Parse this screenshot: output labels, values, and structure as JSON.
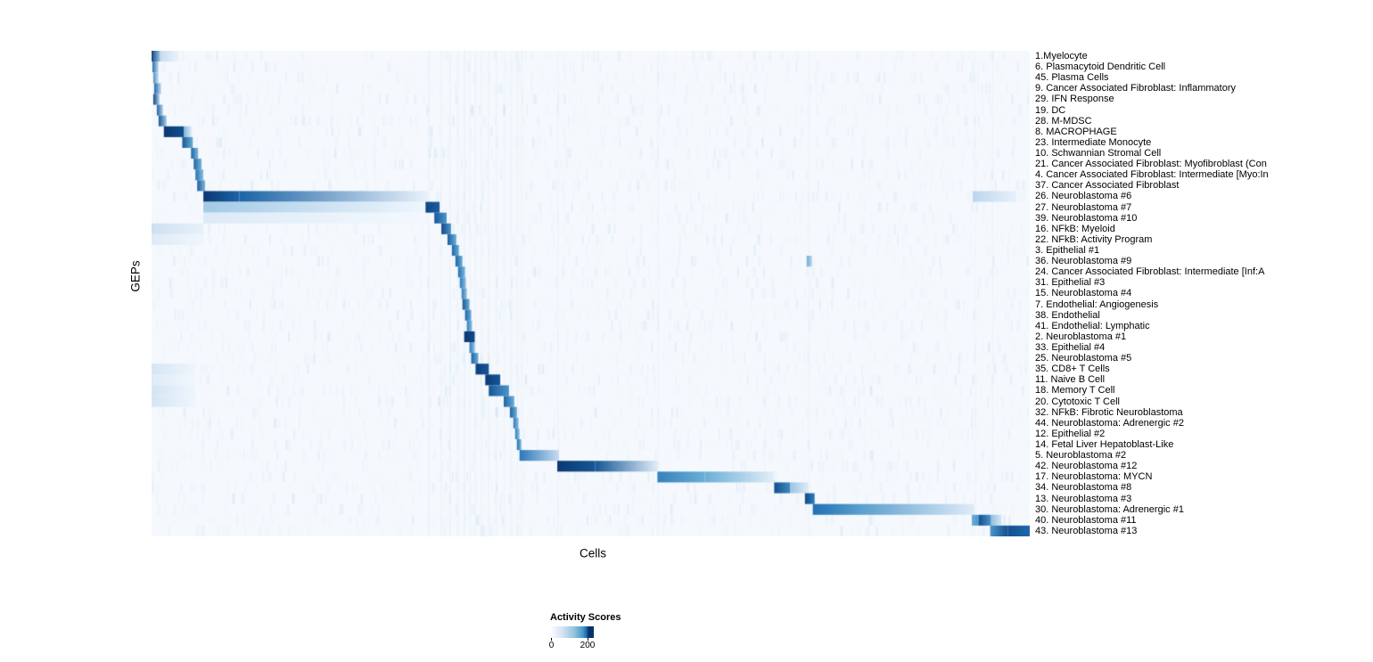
{
  "chart_data": {
    "type": "heatmap",
    "title": "",
    "xlabel": "Cells",
    "ylabel": "GEPs",
    "background": "#f5f9fd",
    "colormap_name": "Blues",
    "value_scale": {
      "min": 0,
      "max": 230,
      "legend_ticks": [
        0,
        200
      ]
    },
    "colormap": [
      {
        "t": 0.0,
        "c": "#f7fbff"
      },
      {
        "t": 0.25,
        "c": "#c8dcf0"
      },
      {
        "t": 0.5,
        "c": "#6baed6"
      },
      {
        "t": 0.75,
        "c": "#2171b5"
      },
      {
        "t": 1.0,
        "c": "#08306b"
      }
    ],
    "legend": {
      "title": "Activity Scores",
      "tick_labels": [
        "0",
        "200"
      ],
      "tick_positions": [
        0.03,
        0.857
      ],
      "gradient_stops": [
        {
          "pos": 0.0,
          "c": "#ffffff"
        },
        {
          "pos": 0.3,
          "c": "#cfe1f2"
        },
        {
          "pos": 0.55,
          "c": "#93c4de"
        },
        {
          "pos": 0.75,
          "c": "#4a98c9"
        },
        {
          "pos": 0.84,
          "c": "#1664ab"
        },
        {
          "pos": 0.88,
          "c": "#08306b"
        },
        {
          "pos": 1.0,
          "c": "#08306b"
        }
      ]
    },
    "column_streaks": [
      [
        0.315,
        0.1
      ],
      [
        0.329,
        0.07
      ],
      [
        0.339,
        0.08
      ],
      [
        0.348,
        0.08
      ],
      [
        0.356,
        0.1
      ],
      [
        0.362,
        0.07
      ],
      [
        0.368,
        0.08
      ],
      [
        0.375,
        0.07
      ],
      [
        0.383,
        0.08
      ],
      [
        0.392,
        0.06
      ],
      [
        0.401,
        0.06
      ],
      [
        0.409,
        0.06
      ],
      [
        0.416,
        0.06
      ],
      [
        0.421,
        0.05
      ],
      [
        0.462,
        0.05
      ],
      [
        0.576,
        0.05
      ],
      [
        0.748,
        0.06
      ],
      [
        0.937,
        0.05
      ],
      [
        0.957,
        0.05
      ]
    ],
    "rows": [
      {
        "label": "1.Myelocyte",
        "blocks": [
          [
            0.0,
            0.01,
            0.92,
            0.35
          ],
          [
            0.01,
            0.032,
            0.25,
            0.05
          ]
        ]
      },
      {
        "label": "6. Plasmacytoid Dendritic Cell",
        "blocks": [
          [
            0.001,
            0.008,
            0.75,
            0.25
          ]
        ]
      },
      {
        "label": "45. Plasma Cells",
        "blocks": [
          [
            0.002,
            0.008,
            0.62,
            0.2
          ]
        ]
      },
      {
        "label": "9. Cancer Associated Fibroblast: Inflammatory",
        "blocks": [
          [
            0.003,
            0.011,
            0.78,
            0.25
          ]
        ]
      },
      {
        "label": "29. IFN Response",
        "blocks": [
          [
            0.002,
            0.009,
            0.92,
            0.3
          ]
        ]
      },
      {
        "label": "19. DC",
        "blocks": [
          [
            0.006,
            0.013,
            0.8,
            0.3
          ]
        ]
      },
      {
        "label": "28. M-MDSC",
        "blocks": [
          [
            0.008,
            0.017,
            0.85,
            0.35
          ]
        ]
      },
      {
        "label": "8. MACROPHAGE",
        "blocks": [
          [
            0.014,
            0.037,
            0.97,
            0.88
          ],
          [
            0.037,
            0.046,
            0.45,
            0.1
          ]
        ]
      },
      {
        "label": "23. Intermediate Monocyte",
        "blocks": [
          [
            0.035,
            0.047,
            0.85,
            0.5
          ]
        ]
      },
      {
        "label": "10. Schwannian Stromal Cell",
        "blocks": [
          [
            0.045,
            0.053,
            0.8,
            0.45
          ]
        ]
      },
      {
        "label": "21. Cancer Associated Fibroblast: Myofibroblast (Con",
        "blocks": [
          [
            0.048,
            0.057,
            0.8,
            0.45
          ]
        ]
      },
      {
        "label": "4. Cancer Associated Fibroblast: Intermediate [Myo:In",
        "blocks": [
          [
            0.05,
            0.059,
            0.75,
            0.4
          ]
        ]
      },
      {
        "label": "37. Cancer Associated Fibroblast",
        "blocks": [
          [
            0.052,
            0.061,
            0.82,
            0.45
          ]
        ]
      },
      {
        "label": "26. Neuroblastoma #6",
        "blocks": [
          [
            0.059,
            0.1,
            0.97,
            0.8
          ],
          [
            0.1,
            0.315,
            0.8,
            0.07
          ],
          [
            0.935,
            0.985,
            0.28,
            0.08
          ]
        ]
      },
      {
        "label": "27. Neuroblastoma #7",
        "blocks": [
          [
            0.059,
            0.31,
            0.35,
            0.04
          ],
          [
            0.312,
            0.328,
            0.92,
            0.82
          ]
        ]
      },
      {
        "label": "39. Neuroblastoma #10",
        "blocks": [
          [
            0.059,
            0.31,
            0.14,
            0.02
          ],
          [
            0.322,
            0.336,
            0.85,
            0.6
          ]
        ]
      },
      {
        "label": "16. NFkB: Myeloid",
        "blocks": [
          [
            0.0,
            0.059,
            0.22,
            0.08
          ],
          [
            0.33,
            0.341,
            0.9,
            0.6
          ]
        ]
      },
      {
        "label": "22. NFkB: Activity Program",
        "blocks": [
          [
            0.0,
            0.059,
            0.13,
            0.04
          ],
          [
            0.337,
            0.347,
            0.82,
            0.5
          ]
        ]
      },
      {
        "label": "3. Epithelial #1",
        "blocks": [
          [
            0.342,
            0.35,
            0.8,
            0.5
          ]
        ]
      },
      {
        "label": "36. Neuroblastoma #9",
        "blocks": [
          [
            0.346,
            0.354,
            0.8,
            0.5
          ],
          [
            0.746,
            0.752,
            0.5,
            0.3
          ]
        ]
      },
      {
        "label": "24. Cancer Associated Fibroblast: Intermediate [Inf:A",
        "blocks": [
          [
            0.349,
            0.357,
            0.75,
            0.45
          ]
        ]
      },
      {
        "label": "31. Epithelial #3",
        "blocks": [
          [
            0.351,
            0.358,
            0.72,
            0.4
          ]
        ]
      },
      {
        "label": "15. Neuroblastoma #4",
        "blocks": [
          [
            0.353,
            0.359,
            0.7,
            0.4
          ]
        ]
      },
      {
        "label": "7. Endothelial: Angiogenesis",
        "blocks": [
          [
            0.354,
            0.362,
            0.85,
            0.5
          ]
        ]
      },
      {
        "label": "38. Endothelial",
        "blocks": [
          [
            0.357,
            0.364,
            0.8,
            0.5
          ]
        ]
      },
      {
        "label": "41. Endothelial: Lymphatic",
        "blocks": [
          [
            0.359,
            0.365,
            0.7,
            0.4
          ]
        ]
      },
      {
        "label": "2. Neuroblastoma #1",
        "blocks": [
          [
            0.356,
            0.368,
            0.97,
            0.9
          ]
        ]
      },
      {
        "label": "33. Epithelial #4",
        "blocks": [
          [
            0.362,
            0.368,
            0.7,
            0.4
          ]
        ]
      },
      {
        "label": "25. Neuroblastoma #5",
        "blocks": [
          [
            0.364,
            0.372,
            0.8,
            0.5
          ]
        ]
      },
      {
        "label": "35. CD8+ T Cells",
        "blocks": [
          [
            0.0,
            0.05,
            0.18,
            0.04
          ],
          [
            0.369,
            0.384,
            0.95,
            0.85
          ]
        ]
      },
      {
        "label": "11. Naive B Cell",
        "blocks": [
          [
            0.0,
            0.05,
            0.13,
            0.03
          ],
          [
            0.38,
            0.397,
            0.96,
            0.85
          ]
        ]
      },
      {
        "label": "18. Memory T Cell",
        "blocks": [
          [
            0.0,
            0.05,
            0.18,
            0.04
          ],
          [
            0.384,
            0.407,
            0.85,
            0.6
          ]
        ]
      },
      {
        "label": "20. Cytotoxic T Cell",
        "blocks": [
          [
            0.0,
            0.05,
            0.18,
            0.04
          ],
          [
            0.401,
            0.413,
            0.8,
            0.5
          ]
        ]
      },
      {
        "label": "32. NFkB: Fibrotic Neuroblastoma",
        "blocks": [
          [
            0.408,
            0.416,
            0.8,
            0.5
          ]
        ]
      },
      {
        "label": "44. Neuroblastoma: Adrenergic #2",
        "blocks": [
          [
            0.412,
            0.418,
            0.72,
            0.4
          ]
        ]
      },
      {
        "label": "12. Epithelial #2",
        "blocks": [
          [
            0.414,
            0.419,
            0.7,
            0.4
          ]
        ]
      },
      {
        "label": "14. Fetal Liver Hepatoblast-Like",
        "blocks": [
          [
            0.416,
            0.421,
            0.75,
            0.45
          ]
        ]
      },
      {
        "label": "5. Neuroblastoma #2",
        "blocks": [
          [
            0.419,
            0.464,
            0.72,
            0.25
          ]
        ]
      },
      {
        "label": "42. Neuroblastoma #12",
        "blocks": [
          [
            0.462,
            0.505,
            0.97,
            0.85
          ],
          [
            0.505,
            0.576,
            0.85,
            0.12
          ]
        ]
      },
      {
        "label": "17. Neuroblastoma: MYCN",
        "blocks": [
          [
            0.576,
            0.63,
            0.68,
            0.5
          ],
          [
            0.63,
            0.709,
            0.5,
            0.1
          ]
        ]
      },
      {
        "label": "34. Neuroblastoma #8",
        "blocks": [
          [
            0.709,
            0.727,
            0.88,
            0.65
          ],
          [
            0.727,
            0.748,
            0.38,
            0.12
          ]
        ]
      },
      {
        "label": "13. Neuroblastoma #3",
        "blocks": [
          [
            0.744,
            0.755,
            0.9,
            0.7
          ]
        ]
      },
      {
        "label": "30. Neuroblastoma: Adrenergic #1",
        "blocks": [
          [
            0.753,
            0.8,
            0.75,
            0.58
          ],
          [
            0.8,
            0.937,
            0.58,
            0.12
          ]
        ]
      },
      {
        "label": "40. Neuroblastoma #11",
        "blocks": [
          [
            0.934,
            0.942,
            0.5,
            0.6
          ],
          [
            0.942,
            0.956,
            0.88,
            0.6
          ],
          [
            0.956,
            0.968,
            0.4,
            0.15
          ]
        ]
      },
      {
        "label": "43. Neuroblastoma #13",
        "blocks": [
          [
            0.955,
            0.975,
            0.6,
            0.88
          ],
          [
            0.975,
            1.0,
            0.88,
            0.78
          ]
        ]
      }
    ]
  }
}
